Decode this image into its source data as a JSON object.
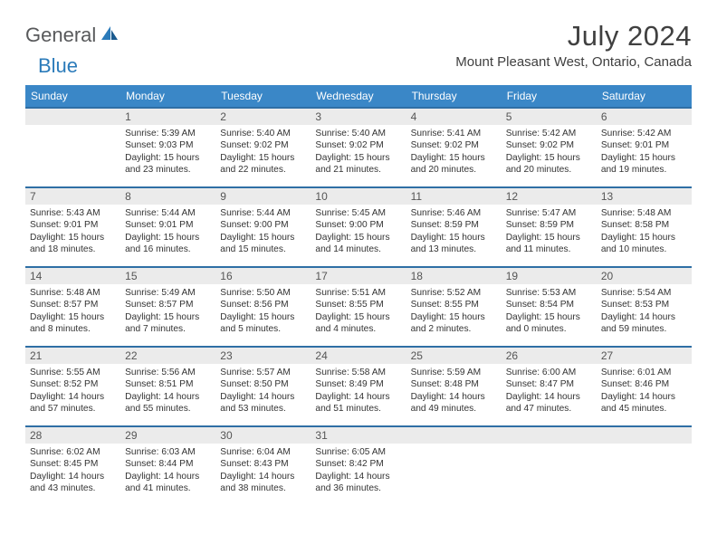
{
  "brand": {
    "part1": "General",
    "part2": "Blue"
  },
  "title": "July 2024",
  "location": "Mount Pleasant West, Ontario, Canada",
  "dayHeaders": [
    "Sunday",
    "Monday",
    "Tuesday",
    "Wednesday",
    "Thursday",
    "Friday",
    "Saturday"
  ],
  "colors": {
    "headerBg": "#3a87c7",
    "rowBorder": "#2f6fa5",
    "dayNumBg": "#ebebeb",
    "brandGray": "#58595b",
    "brandBlue": "#2b7bba"
  },
  "weeks": [
    [
      {
        "day": "",
        "sunrise": "",
        "sunset": "",
        "daylight": ""
      },
      {
        "day": "1",
        "sunrise": "Sunrise: 5:39 AM",
        "sunset": "Sunset: 9:03 PM",
        "daylight": "Daylight: 15 hours and 23 minutes."
      },
      {
        "day": "2",
        "sunrise": "Sunrise: 5:40 AM",
        "sunset": "Sunset: 9:02 PM",
        "daylight": "Daylight: 15 hours and 22 minutes."
      },
      {
        "day": "3",
        "sunrise": "Sunrise: 5:40 AM",
        "sunset": "Sunset: 9:02 PM",
        "daylight": "Daylight: 15 hours and 21 minutes."
      },
      {
        "day": "4",
        "sunrise": "Sunrise: 5:41 AM",
        "sunset": "Sunset: 9:02 PM",
        "daylight": "Daylight: 15 hours and 20 minutes."
      },
      {
        "day": "5",
        "sunrise": "Sunrise: 5:42 AM",
        "sunset": "Sunset: 9:02 PM",
        "daylight": "Daylight: 15 hours and 20 minutes."
      },
      {
        "day": "6",
        "sunrise": "Sunrise: 5:42 AM",
        "sunset": "Sunset: 9:01 PM",
        "daylight": "Daylight: 15 hours and 19 minutes."
      }
    ],
    [
      {
        "day": "7",
        "sunrise": "Sunrise: 5:43 AM",
        "sunset": "Sunset: 9:01 PM",
        "daylight": "Daylight: 15 hours and 18 minutes."
      },
      {
        "day": "8",
        "sunrise": "Sunrise: 5:44 AM",
        "sunset": "Sunset: 9:01 PM",
        "daylight": "Daylight: 15 hours and 16 minutes."
      },
      {
        "day": "9",
        "sunrise": "Sunrise: 5:44 AM",
        "sunset": "Sunset: 9:00 PM",
        "daylight": "Daylight: 15 hours and 15 minutes."
      },
      {
        "day": "10",
        "sunrise": "Sunrise: 5:45 AM",
        "sunset": "Sunset: 9:00 PM",
        "daylight": "Daylight: 15 hours and 14 minutes."
      },
      {
        "day": "11",
        "sunrise": "Sunrise: 5:46 AM",
        "sunset": "Sunset: 8:59 PM",
        "daylight": "Daylight: 15 hours and 13 minutes."
      },
      {
        "day": "12",
        "sunrise": "Sunrise: 5:47 AM",
        "sunset": "Sunset: 8:59 PM",
        "daylight": "Daylight: 15 hours and 11 minutes."
      },
      {
        "day": "13",
        "sunrise": "Sunrise: 5:48 AM",
        "sunset": "Sunset: 8:58 PM",
        "daylight": "Daylight: 15 hours and 10 minutes."
      }
    ],
    [
      {
        "day": "14",
        "sunrise": "Sunrise: 5:48 AM",
        "sunset": "Sunset: 8:57 PM",
        "daylight": "Daylight: 15 hours and 8 minutes."
      },
      {
        "day": "15",
        "sunrise": "Sunrise: 5:49 AM",
        "sunset": "Sunset: 8:57 PM",
        "daylight": "Daylight: 15 hours and 7 minutes."
      },
      {
        "day": "16",
        "sunrise": "Sunrise: 5:50 AM",
        "sunset": "Sunset: 8:56 PM",
        "daylight": "Daylight: 15 hours and 5 minutes."
      },
      {
        "day": "17",
        "sunrise": "Sunrise: 5:51 AM",
        "sunset": "Sunset: 8:55 PM",
        "daylight": "Daylight: 15 hours and 4 minutes."
      },
      {
        "day": "18",
        "sunrise": "Sunrise: 5:52 AM",
        "sunset": "Sunset: 8:55 PM",
        "daylight": "Daylight: 15 hours and 2 minutes."
      },
      {
        "day": "19",
        "sunrise": "Sunrise: 5:53 AM",
        "sunset": "Sunset: 8:54 PM",
        "daylight": "Daylight: 15 hours and 0 minutes."
      },
      {
        "day": "20",
        "sunrise": "Sunrise: 5:54 AM",
        "sunset": "Sunset: 8:53 PM",
        "daylight": "Daylight: 14 hours and 59 minutes."
      }
    ],
    [
      {
        "day": "21",
        "sunrise": "Sunrise: 5:55 AM",
        "sunset": "Sunset: 8:52 PM",
        "daylight": "Daylight: 14 hours and 57 minutes."
      },
      {
        "day": "22",
        "sunrise": "Sunrise: 5:56 AM",
        "sunset": "Sunset: 8:51 PM",
        "daylight": "Daylight: 14 hours and 55 minutes."
      },
      {
        "day": "23",
        "sunrise": "Sunrise: 5:57 AM",
        "sunset": "Sunset: 8:50 PM",
        "daylight": "Daylight: 14 hours and 53 minutes."
      },
      {
        "day": "24",
        "sunrise": "Sunrise: 5:58 AM",
        "sunset": "Sunset: 8:49 PM",
        "daylight": "Daylight: 14 hours and 51 minutes."
      },
      {
        "day": "25",
        "sunrise": "Sunrise: 5:59 AM",
        "sunset": "Sunset: 8:48 PM",
        "daylight": "Daylight: 14 hours and 49 minutes."
      },
      {
        "day": "26",
        "sunrise": "Sunrise: 6:00 AM",
        "sunset": "Sunset: 8:47 PM",
        "daylight": "Daylight: 14 hours and 47 minutes."
      },
      {
        "day": "27",
        "sunrise": "Sunrise: 6:01 AM",
        "sunset": "Sunset: 8:46 PM",
        "daylight": "Daylight: 14 hours and 45 minutes."
      }
    ],
    [
      {
        "day": "28",
        "sunrise": "Sunrise: 6:02 AM",
        "sunset": "Sunset: 8:45 PM",
        "daylight": "Daylight: 14 hours and 43 minutes."
      },
      {
        "day": "29",
        "sunrise": "Sunrise: 6:03 AM",
        "sunset": "Sunset: 8:44 PM",
        "daylight": "Daylight: 14 hours and 41 minutes."
      },
      {
        "day": "30",
        "sunrise": "Sunrise: 6:04 AM",
        "sunset": "Sunset: 8:43 PM",
        "daylight": "Daylight: 14 hours and 38 minutes."
      },
      {
        "day": "31",
        "sunrise": "Sunrise: 6:05 AM",
        "sunset": "Sunset: 8:42 PM",
        "daylight": "Daylight: 14 hours and 36 minutes."
      },
      {
        "day": "",
        "sunrise": "",
        "sunset": "",
        "daylight": ""
      },
      {
        "day": "",
        "sunrise": "",
        "sunset": "",
        "daylight": ""
      },
      {
        "day": "",
        "sunrise": "",
        "sunset": "",
        "daylight": ""
      }
    ]
  ]
}
